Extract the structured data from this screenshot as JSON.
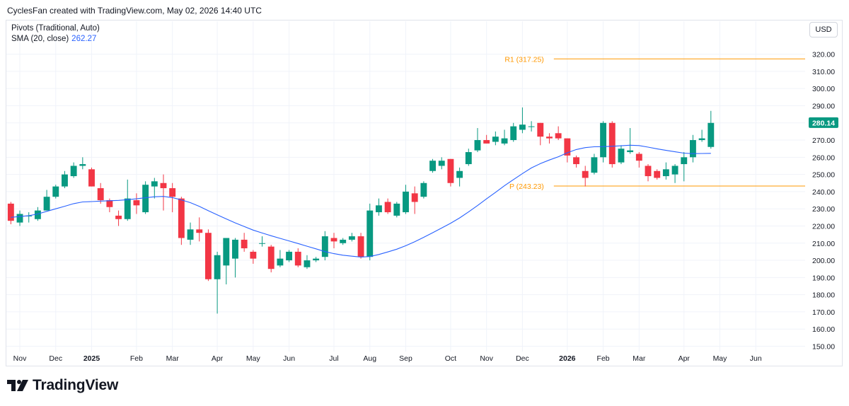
{
  "header": {
    "caption": "CyclesFan created with TradingView.com, May 02, 2026 14:40 UTC"
  },
  "legend": {
    "pivots_label": "Pivots (Traditional, Auto)",
    "sma_label": "SMA (20, close)",
    "sma_value": "262.27"
  },
  "currency_button": "USD",
  "brand": {
    "name": "TradingView"
  },
  "colors": {
    "up": "#089981",
    "down": "#f23645",
    "sma": "#2962ff",
    "pivot": "#ff9800",
    "price_badge": "#089981"
  },
  "icons": {
    "brand_logo": "tradingview-logo-icon"
  },
  "chart_data": {
    "type": "candlestick",
    "interval": "weekly",
    "ylim": [
      145,
      325
    ],
    "y_ticks": [
      150,
      160,
      170,
      180,
      190,
      200,
      210,
      220,
      230,
      240,
      250,
      260,
      270,
      280,
      290,
      300,
      310,
      320
    ],
    "y_tick_labels": [
      "150.00",
      "160.00",
      "170.00",
      "180.00",
      "190.00",
      "200.00",
      "210.00",
      "220.00",
      "230.00",
      "240.00",
      "250.00",
      "260.00",
      "270.00",
      "280.00",
      "290.00",
      "300.00",
      "310.00",
      "320.00"
    ],
    "x_tick_labels": [
      {
        "label": "Nov",
        "bar": 1,
        "bold": false
      },
      {
        "label": "Dec",
        "bar": 5,
        "bold": false
      },
      {
        "label": "2025",
        "bar": 9,
        "bold": true
      },
      {
        "label": "Feb",
        "bar": 14,
        "bold": false
      },
      {
        "label": "Mar",
        "bar": 18,
        "bold": false
      },
      {
        "label": "Apr",
        "bar": 23,
        "bold": false
      },
      {
        "label": "May",
        "bar": 27,
        "bold": false
      },
      {
        "label": "Jun",
        "bar": 31,
        "bold": false
      },
      {
        "label": "Jul",
        "bar": 36,
        "bold": false
      },
      {
        "label": "Aug",
        "bar": 40,
        "bold": false
      },
      {
        "label": "Sep",
        "bar": 44,
        "bold": false
      },
      {
        "label": "Oct",
        "bar": 49,
        "bold": false
      },
      {
        "label": "Nov",
        "bar": 53,
        "bold": false
      },
      {
        "label": "Dec",
        "bar": 57,
        "bold": false
      },
      {
        "label": "2026",
        "bar": 62,
        "bold": true
      },
      {
        "label": "Feb",
        "bar": 66,
        "bold": false
      },
      {
        "label": "Mar",
        "bar": 70,
        "bold": false
      },
      {
        "label": "Apr",
        "bar": 75,
        "bold": false
      },
      {
        "label": "May",
        "bar": 79,
        "bold": false
      },
      {
        "label": "Jun",
        "bar": 83,
        "bold": false
      }
    ],
    "total_bar_slots": 89,
    "candles": [
      {
        "o": 233,
        "h": 234,
        "l": 221,
        "c": 223
      },
      {
        "o": 222,
        "h": 229,
        "l": 220,
        "c": 227
      },
      {
        "o": 226,
        "h": 228,
        "l": 222,
        "c": 226
      },
      {
        "o": 224,
        "h": 231,
        "l": 223,
        "c": 229
      },
      {
        "o": 229,
        "h": 241,
        "l": 229,
        "c": 237
      },
      {
        "o": 237,
        "h": 244,
        "l": 236,
        "c": 243
      },
      {
        "o": 243,
        "h": 252,
        "l": 242,
        "c": 250
      },
      {
        "o": 249,
        "h": 257,
        "l": 248,
        "c": 255
      },
      {
        "o": 255,
        "h": 260,
        "l": 253,
        "c": 256
      },
      {
        "o": 253,
        "h": 254,
        "l": 243,
        "c": 243
      },
      {
        "o": 242,
        "h": 245,
        "l": 233,
        "c": 235
      },
      {
        "o": 235,
        "h": 236,
        "l": 228,
        "c": 231
      },
      {
        "o": 226,
        "h": 229,
        "l": 220,
        "c": 224
      },
      {
        "o": 224,
        "h": 247,
        "l": 223,
        "c": 236
      },
      {
        "o": 235,
        "h": 239,
        "l": 227,
        "c": 232
      },
      {
        "o": 228,
        "h": 246,
        "l": 227,
        "c": 244
      },
      {
        "o": 243,
        "h": 248,
        "l": 236,
        "c": 246
      },
      {
        "o": 245,
        "h": 250,
        "l": 229,
        "c": 242
      },
      {
        "o": 242,
        "h": 245,
        "l": 228,
        "c": 237
      },
      {
        "o": 236,
        "h": 237,
        "l": 209,
        "c": 213
      },
      {
        "o": 212,
        "h": 222,
        "l": 209,
        "c": 218
      },
      {
        "o": 218,
        "h": 225,
        "l": 211,
        "c": 216
      },
      {
        "o": 216,
        "h": 218,
        "l": 188,
        "c": 189
      },
      {
        "o": 189,
        "h": 205,
        "l": 169,
        "c": 203
      },
      {
        "o": 197,
        "h": 213,
        "l": 186,
        "c": 213
      },
      {
        "o": 201,
        "h": 213,
        "l": 190,
        "c": 212
      },
      {
        "o": 212,
        "h": 216,
        "l": 205,
        "c": 207
      },
      {
        "o": 205,
        "h": 206,
        "l": 198,
        "c": 201
      },
      {
        "o": 210,
        "h": 214,
        "l": 208,
        "c": 210
      },
      {
        "o": 208,
        "h": 209,
        "l": 193,
        "c": 195
      },
      {
        "o": 197,
        "h": 206,
        "l": 196,
        "c": 201
      },
      {
        "o": 200,
        "h": 206,
        "l": 199,
        "c": 205
      },
      {
        "o": 205,
        "h": 207,
        "l": 196,
        "c": 197
      },
      {
        "o": 196,
        "h": 203,
        "l": 195,
        "c": 200
      },
      {
        "o": 200,
        "h": 202,
        "l": 199,
        "c": 201
      },
      {
        "o": 202,
        "h": 217,
        "l": 200,
        "c": 214
      },
      {
        "o": 213,
        "h": 216,
        "l": 207,
        "c": 211
      },
      {
        "o": 210,
        "h": 213,
        "l": 209,
        "c": 212
      },
      {
        "o": 212,
        "h": 216,
        "l": 211,
        "c": 214
      },
      {
        "o": 214,
        "h": 216,
        "l": 201,
        "c": 202
      },
      {
        "o": 202,
        "h": 233,
        "l": 200,
        "c": 229
      },
      {
        "o": 228,
        "h": 236,
        "l": 226,
        "c": 232
      },
      {
        "o": 234,
        "h": 236,
        "l": 227,
        "c": 228
      },
      {
        "o": 226,
        "h": 234,
        "l": 225,
        "c": 233
      },
      {
        "o": 228,
        "h": 244,
        "l": 227,
        "c": 240
      },
      {
        "o": 239,
        "h": 243,
        "l": 227,
        "c": 234
      },
      {
        "o": 237,
        "h": 246,
        "l": 236,
        "c": 245
      },
      {
        "o": 252,
        "h": 259,
        "l": 251,
        "c": 258
      },
      {
        "o": 255,
        "h": 260,
        "l": 253,
        "c": 258
      },
      {
        "o": 259,
        "h": 259,
        "l": 243,
        "c": 245
      },
      {
        "o": 248,
        "h": 254,
        "l": 243,
        "c": 252
      },
      {
        "o": 256,
        "h": 265,
        "l": 255,
        "c": 263
      },
      {
        "o": 264,
        "h": 277,
        "l": 263,
        "c": 270
      },
      {
        "o": 270,
        "h": 273,
        "l": 268,
        "c": 268
      },
      {
        "o": 269,
        "h": 275,
        "l": 267,
        "c": 272
      },
      {
        "o": 268,
        "h": 276,
        "l": 267,
        "c": 271
      },
      {
        "o": 270,
        "h": 280,
        "l": 269,
        "c": 278
      },
      {
        "o": 276,
        "h": 289,
        "l": 274,
        "c": 279
      },
      {
        "o": 278,
        "h": 281,
        "l": 275,
        "c": 278
      },
      {
        "o": 280,
        "h": 280,
        "l": 267,
        "c": 272
      },
      {
        "o": 272,
        "h": 274,
        "l": 268,
        "c": 271
      },
      {
        "o": 274,
        "h": 278,
        "l": 270,
        "c": 271
      },
      {
        "o": 271,
        "h": 271,
        "l": 257,
        "c": 261
      },
      {
        "o": 260,
        "h": 261,
        "l": 254,
        "c": 256
      },
      {
        "o": 252,
        "h": 255,
        "l": 243,
        "c": 248
      },
      {
        "o": 251,
        "h": 262,
        "l": 250,
        "c": 260
      },
      {
        "o": 260,
        "h": 281,
        "l": 257,
        "c": 280
      },
      {
        "o": 280,
        "h": 281,
        "l": 254,
        "c": 256
      },
      {
        "o": 257,
        "h": 267,
        "l": 256,
        "c": 265
      },
      {
        "o": 263,
        "h": 277,
        "l": 262,
        "c": 264
      },
      {
        "o": 262,
        "h": 263,
        "l": 254,
        "c": 258
      },
      {
        "o": 255,
        "h": 256,
        "l": 246,
        "c": 249
      },
      {
        "o": 252,
        "h": 253,
        "l": 247,
        "c": 248
      },
      {
        "o": 249,
        "h": 257,
        "l": 247,
        "c": 253
      },
      {
        "o": 250,
        "h": 256,
        "l": 245,
        "c": 255
      },
      {
        "o": 256,
        "h": 263,
        "l": 246,
        "c": 260
      },
      {
        "o": 260,
        "h": 273,
        "l": 257,
        "c": 270
      },
      {
        "o": 270,
        "h": 276,
        "l": 269,
        "c": 271
      },
      {
        "o": 266,
        "h": 287,
        "l": 265,
        "c": 280
      }
    ],
    "sma": {
      "name": "SMA (20, close)",
      "values": [
        225,
        225.5,
        226,
        227,
        228.5,
        230,
        231.5,
        233,
        234,
        234.2,
        234.5,
        234.7,
        234.9,
        235.3,
        235.8,
        236.4,
        237,
        237.2,
        236.5,
        235.2,
        233.6,
        231.4,
        228.9,
        226.5,
        224.1,
        221.8,
        219.7,
        217.6,
        215.9,
        214.3,
        212.8,
        211.3,
        209.8,
        208.2,
        206.7,
        205.1,
        203.9,
        203,
        202.4,
        201.9,
        202.2,
        203.4,
        204.9,
        206.5,
        208.5,
        210.8,
        213.4,
        216.1,
        218.8,
        221.6,
        224.7,
        228.2,
        231.9,
        235.8,
        239.6,
        243.4,
        247,
        250.5,
        253.8,
        256.3,
        258.4,
        260.3,
        262.6,
        264.5,
        265.6,
        266.1,
        266.2,
        266.4,
        266.7,
        267,
        266.8,
        265.9,
        264.9,
        264,
        263.2,
        262.4,
        262.1,
        262.2,
        262.27
      ]
    },
    "pivots": [
      {
        "label": "R1 (317.25)",
        "value": 317.25
      },
      {
        "label": "P (243.23)",
        "value": 243.23
      }
    ],
    "last_price_label": "280.14",
    "last_price": 280.14
  }
}
